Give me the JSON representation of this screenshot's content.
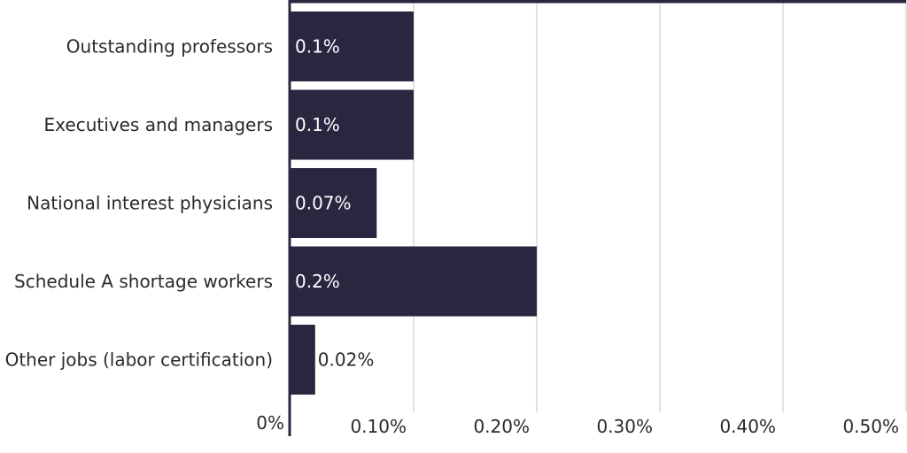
{
  "chart_data": {
    "type": "bar",
    "orientation": "horizontal",
    "categories": [
      "",
      "Outstanding professors",
      "Executives and managers",
      "National interest physicians",
      "Schedule A shortage workers",
      "Other jobs (labor certification)"
    ],
    "values": [
      0.5,
      0.1,
      0.1,
      0.07,
      0.2,
      0.02
    ],
    "value_labels": [
      "",
      "0.1%",
      "0.1%",
      "0.07%",
      "0.2%",
      "0.02%"
    ],
    "xlim": [
      0,
      0.5
    ],
    "x_ticks": [
      0,
      0.1,
      0.2,
      0.3,
      0.4,
      0.5
    ],
    "x_tick_labels": [
      "0%",
      "0.10%",
      "0.20%",
      "0.30%",
      "0.40%",
      "0.50%"
    ],
    "grid": true,
    "title": "",
    "xlabel": "",
    "ylabel": "",
    "colors": {
      "bar": "#2b2540",
      "grid": "#d9d9d9",
      "axis": "#2b2540",
      "label_inside": "#ffffff",
      "label_outside": "#2a2a2a",
      "text": "#2a2a2a"
    }
  }
}
